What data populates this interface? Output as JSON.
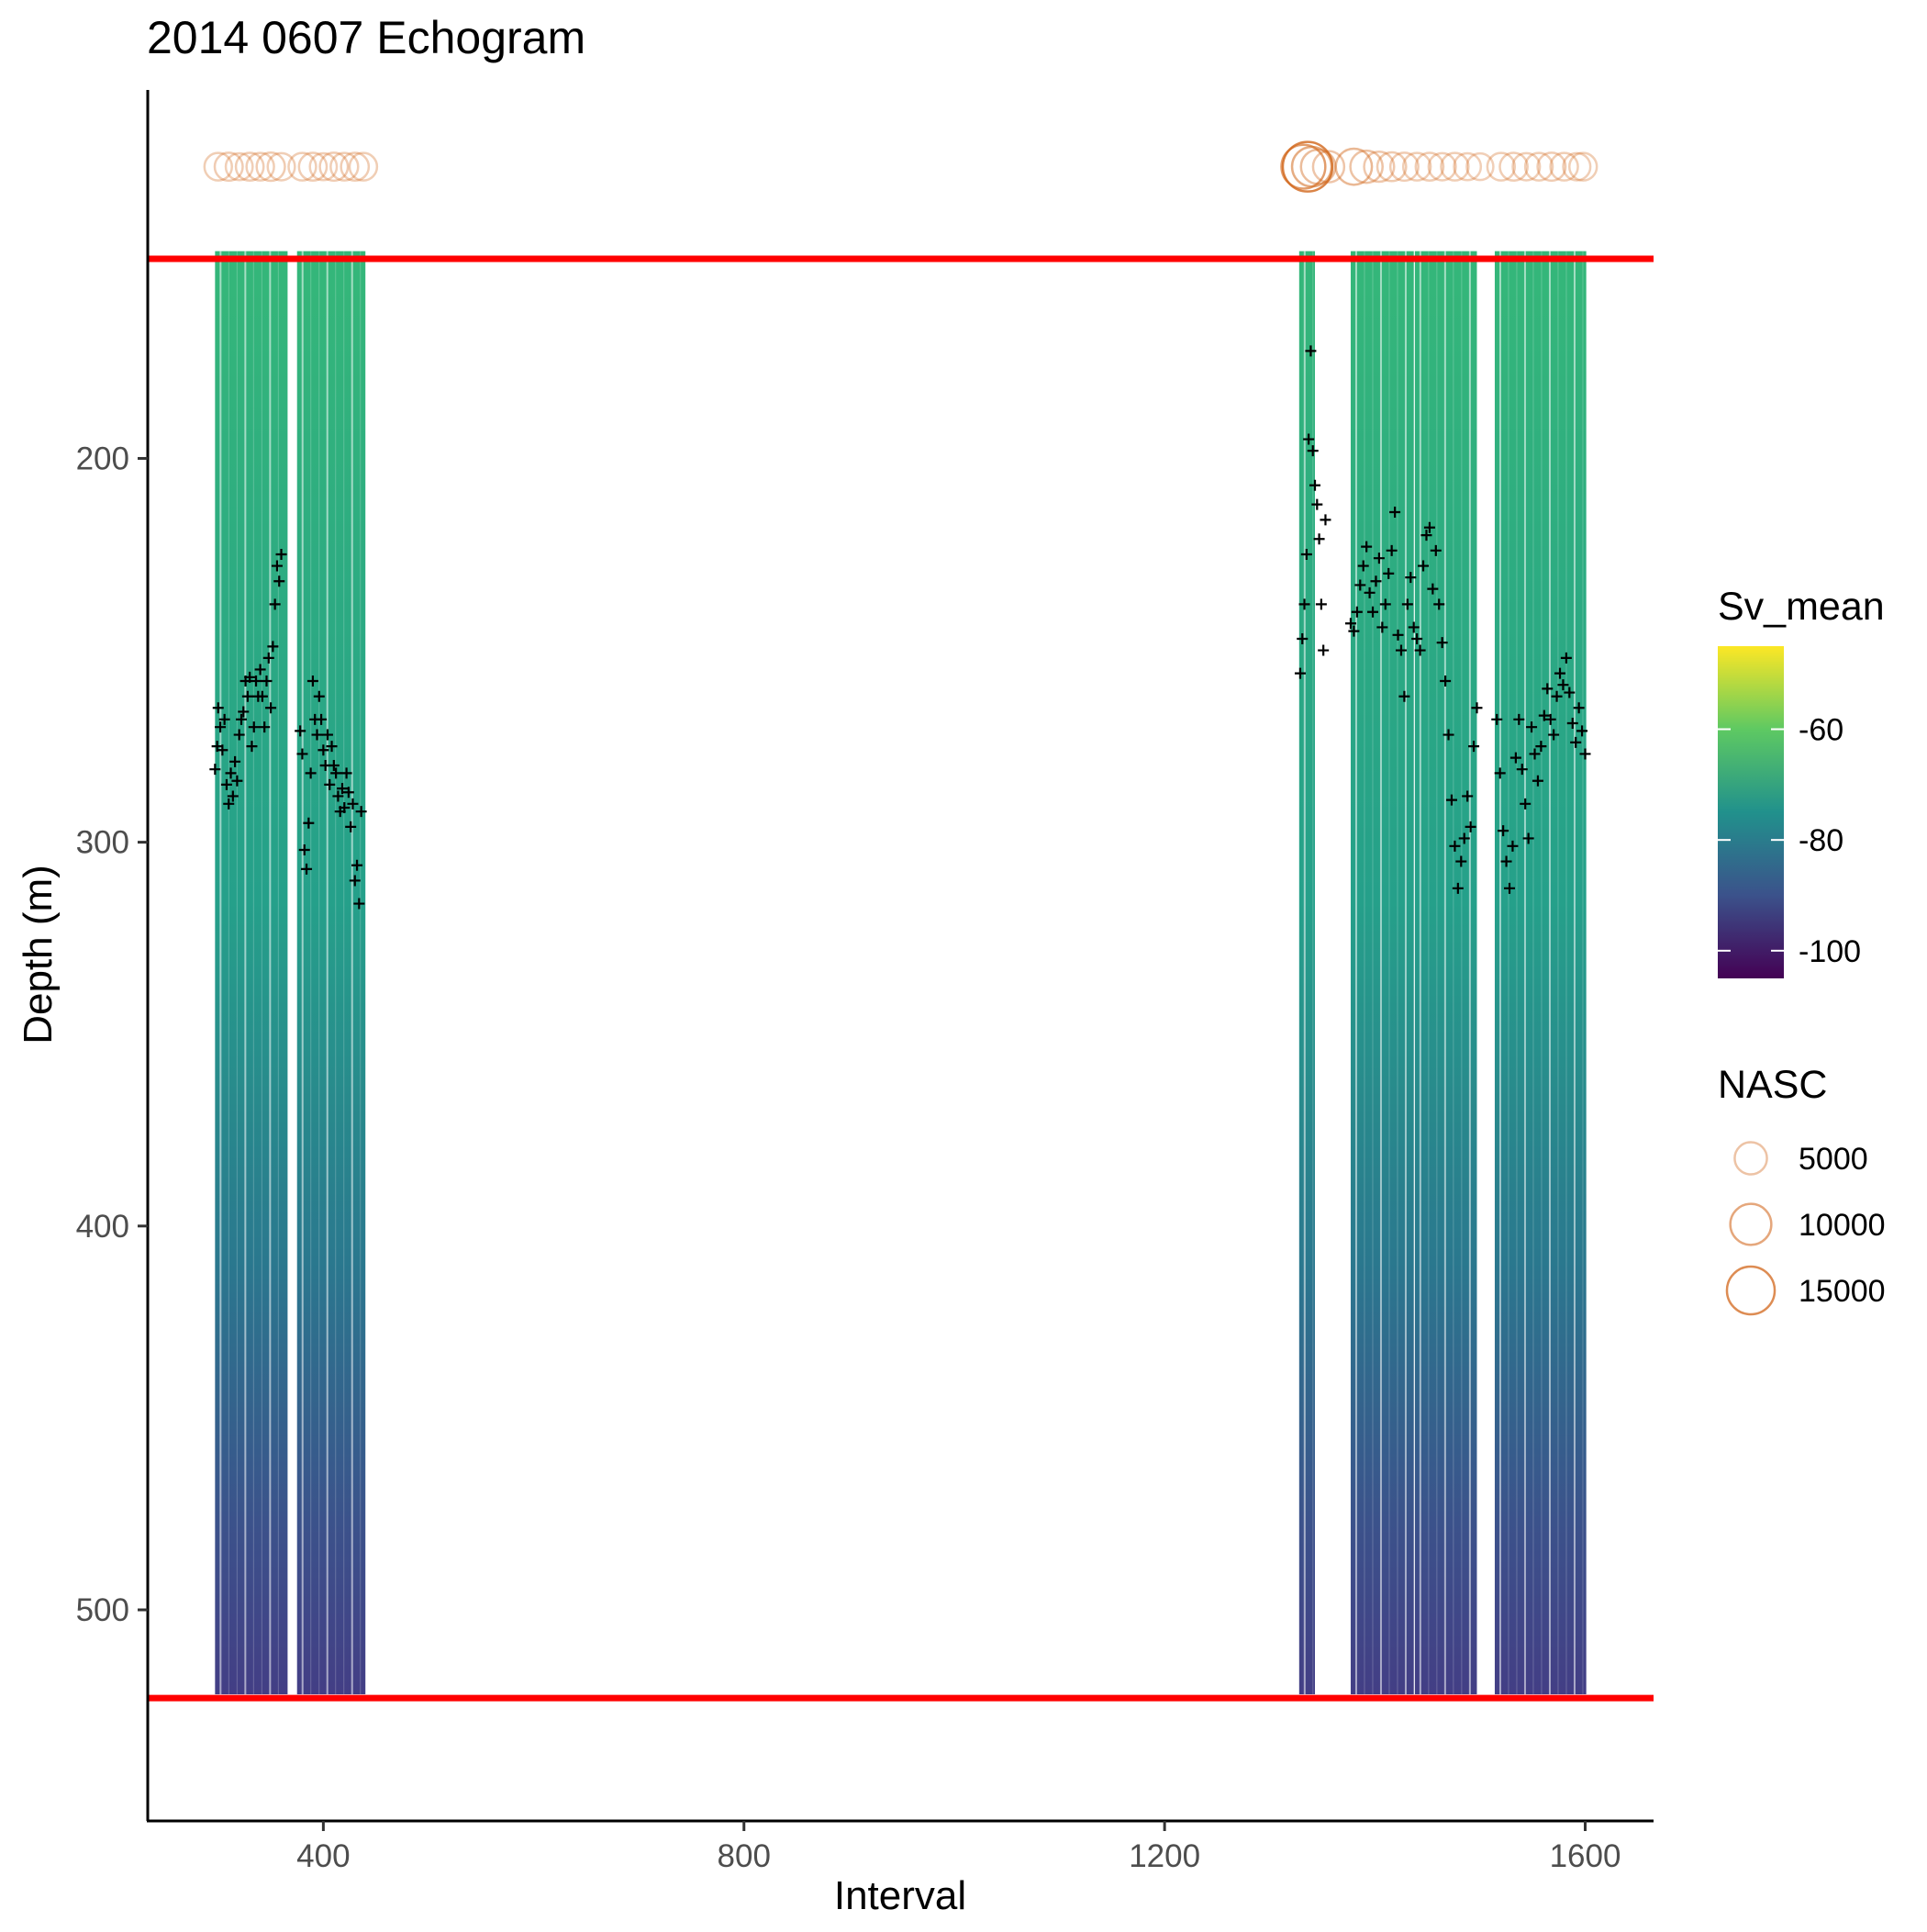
{
  "chart_data": {
    "type": "heatmap",
    "title": "2014 0607 Echogram",
    "xlabel": "Interval",
    "ylabel": "Depth (m)",
    "xlim": [
      233,
      1665
    ],
    "ylim": [
      555,
      104
    ],
    "x_ticks": [
      400,
      800,
      1200,
      1600
    ],
    "y_ticks": [
      200,
      300,
      400,
      500
    ],
    "grid": false,
    "legend_position": "right",
    "reference_lines": [
      {
        "depth": 148,
        "color": "#ff0000"
      },
      {
        "depth": 523,
        "color": "#ff0000"
      }
    ],
    "heatmap": {
      "depth_range": [
        146,
        522
      ],
      "segments": [
        {
          "x_start": 297,
          "x_end": 366
        },
        {
          "x_start": 375,
          "x_end": 440
        },
        {
          "x_start": 1328,
          "x_end": 1343
        },
        {
          "x_start": 1377,
          "x_end": 1437
        },
        {
          "x_start": 1438,
          "x_end": 1497
        },
        {
          "x_start": 1514,
          "x_end": 1601
        }
      ]
    },
    "color_legend": {
      "title": "Sv_mean",
      "range": [
        -105,
        -45
      ],
      "ticks": [
        -60,
        -80,
        -100
      ],
      "colors": [
        "#440154",
        "#3b528b",
        "#21918c",
        "#5ec962",
        "#fde725"
      ]
    },
    "size_legend": {
      "title": "NASC",
      "color": "#d2691e",
      "entries": [
        {
          "label": "5000",
          "value": 5000
        },
        {
          "label": "10000",
          "value": 10000
        },
        {
          "label": "15000",
          "value": 15000
        }
      ]
    },
    "nasc_points": {
      "depth": 124,
      "points": [
        [
          300,
          3000
        ],
        [
          310,
          3200
        ],
        [
          320,
          2800
        ],
        [
          330,
          3100
        ],
        [
          340,
          3000
        ],
        [
          350,
          3300
        ],
        [
          360,
          2900
        ],
        [
          380,
          3000
        ],
        [
          390,
          3100
        ],
        [
          400,
          2800
        ],
        [
          410,
          3200
        ],
        [
          420,
          3000
        ],
        [
          430,
          3100
        ],
        [
          438,
          3000
        ],
        [
          1332,
          12000
        ],
        [
          1336,
          16500
        ],
        [
          1340,
          9000
        ],
        [
          1346,
          6000
        ],
        [
          1356,
          4500
        ],
        [
          1380,
          7000
        ],
        [
          1392,
          5000
        ],
        [
          1404,
          4000
        ],
        [
          1416,
          3500
        ],
        [
          1428,
          3200
        ],
        [
          1440,
          3000
        ],
        [
          1452,
          3100
        ],
        [
          1464,
          2900
        ],
        [
          1476,
          3000
        ],
        [
          1488,
          2800
        ],
        [
          1500,
          2700
        ],
        [
          1520,
          3000
        ],
        [
          1532,
          3100
        ],
        [
          1544,
          2900
        ],
        [
          1556,
          3000
        ],
        [
          1568,
          3200
        ],
        [
          1580,
          3000
        ],
        [
          1592,
          2900
        ],
        [
          1598,
          3000
        ]
      ]
    },
    "marker_points": [
      [
        297,
        281
      ],
      [
        299,
        275
      ],
      [
        300,
        265
      ],
      [
        302,
        270
      ],
      [
        304,
        276
      ],
      [
        306,
        268
      ],
      [
        308,
        285
      ],
      [
        310,
        290
      ],
      [
        312,
        282
      ],
      [
        314,
        288
      ],
      [
        316,
        279
      ],
      [
        318,
        284
      ],
      [
        320,
        272
      ],
      [
        322,
        268
      ],
      [
        324,
        266
      ],
      [
        326,
        258
      ],
      [
        328,
        262
      ],
      [
        330,
        257
      ],
      [
        332,
        275
      ],
      [
        334,
        270
      ],
      [
        336,
        258
      ],
      [
        338,
        262
      ],
      [
        340,
        255
      ],
      [
        342,
        262
      ],
      [
        344,
        270
      ],
      [
        346,
        258
      ],
      [
        348,
        252
      ],
      [
        350,
        265
      ],
      [
        352,
        249
      ],
      [
        354,
        238
      ],
      [
        356,
        228
      ],
      [
        358,
        232
      ],
      [
        360,
        225
      ],
      [
        378,
        271
      ],
      [
        380,
        277
      ],
      [
        382,
        302
      ],
      [
        384,
        307
      ],
      [
        386,
        295
      ],
      [
        388,
        282
      ],
      [
        390,
        258
      ],
      [
        392,
        268
      ],
      [
        394,
        272
      ],
      [
        396,
        262
      ],
      [
        398,
        268
      ],
      [
        400,
        276
      ],
      [
        402,
        280
      ],
      [
        404,
        272
      ],
      [
        406,
        285
      ],
      [
        408,
        275
      ],
      [
        410,
        280
      ],
      [
        412,
        282
      ],
      [
        414,
        288
      ],
      [
        416,
        292
      ],
      [
        418,
        286
      ],
      [
        420,
        291
      ],
      [
        422,
        282
      ],
      [
        424,
        287
      ],
      [
        426,
        296
      ],
      [
        428,
        290
      ],
      [
        430,
        310
      ],
      [
        432,
        306
      ],
      [
        434,
        316
      ],
      [
        436,
        292
      ],
      [
        1329,
        256
      ],
      [
        1331,
        247
      ],
      [
        1333,
        238
      ],
      [
        1335,
        225
      ],
      [
        1337,
        195
      ],
      [
        1339,
        172
      ],
      [
        1341,
        198
      ],
      [
        1343,
        207
      ],
      [
        1345,
        212
      ],
      [
        1347,
        221
      ],
      [
        1349,
        238
      ],
      [
        1351,
        250
      ],
      [
        1353,
        216
      ],
      [
        1377,
        243
      ],
      [
        1380,
        245
      ],
      [
        1383,
        240
      ],
      [
        1386,
        233
      ],
      [
        1389,
        228
      ],
      [
        1392,
        223
      ],
      [
        1395,
        235
      ],
      [
        1398,
        240
      ],
      [
        1401,
        232
      ],
      [
        1404,
        226
      ],
      [
        1407,
        244
      ],
      [
        1410,
        238
      ],
      [
        1413,
        230
      ],
      [
        1416,
        224
      ],
      [
        1419,
        214
      ],
      [
        1422,
        246
      ],
      [
        1425,
        250
      ],
      [
        1428,
        262
      ],
      [
        1431,
        238
      ],
      [
        1434,
        231
      ],
      [
        1437,
        244
      ],
      [
        1440,
        247
      ],
      [
        1443,
        250
      ],
      [
        1446,
        228
      ],
      [
        1449,
        220
      ],
      [
        1452,
        218
      ],
      [
        1455,
        234
      ],
      [
        1458,
        224
      ],
      [
        1461,
        238
      ],
      [
        1464,
        248
      ],
      [
        1467,
        258
      ],
      [
        1470,
        272
      ],
      [
        1473,
        289
      ],
      [
        1476,
        301
      ],
      [
        1479,
        312
      ],
      [
        1482,
        305
      ],
      [
        1485,
        299
      ],
      [
        1488,
        288
      ],
      [
        1491,
        296
      ],
      [
        1494,
        275
      ],
      [
        1497,
        265
      ],
      [
        1516,
        268
      ],
      [
        1519,
        282
      ],
      [
        1522,
        297
      ],
      [
        1525,
        305
      ],
      [
        1528,
        312
      ],
      [
        1531,
        301
      ],
      [
        1534,
        278
      ],
      [
        1537,
        268
      ],
      [
        1540,
        281
      ],
      [
        1543,
        290
      ],
      [
        1546,
        299
      ],
      [
        1549,
        270
      ],
      [
        1552,
        277
      ],
      [
        1555,
        284
      ],
      [
        1558,
        275
      ],
      [
        1561,
        267
      ],
      [
        1564,
        260
      ],
      [
        1567,
        268
      ],
      [
        1570,
        272
      ],
      [
        1573,
        262
      ],
      [
        1576,
        256
      ],
      [
        1579,
        259
      ],
      [
        1582,
        252
      ],
      [
        1585,
        261
      ],
      [
        1588,
        269
      ],
      [
        1591,
        274
      ],
      [
        1594,
        265
      ],
      [
        1597,
        271
      ],
      [
        1600,
        277
      ]
    ]
  }
}
